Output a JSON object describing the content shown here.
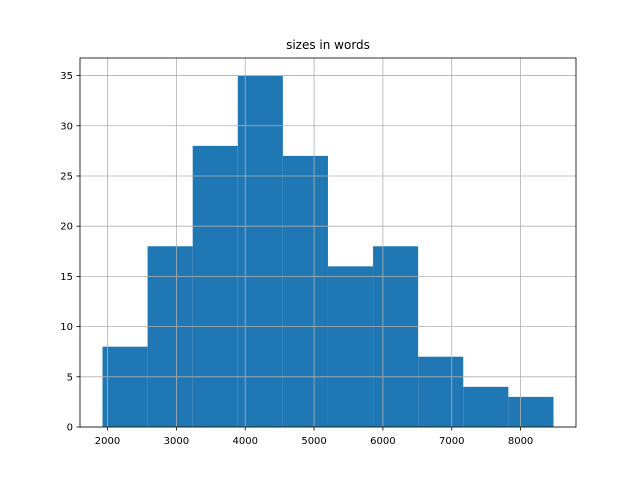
{
  "chart_data": {
    "type": "histogram",
    "title": "sizes in words",
    "bins": [
      1927,
      2582,
      3237,
      3892,
      4547,
      5202,
      5857,
      6512,
      7167,
      7822,
      8478
    ],
    "values": [
      8,
      18,
      28,
      35,
      27,
      16,
      18,
      7,
      4,
      3
    ],
    "color": "#1f77b4",
    "xlim": [
      1600,
      8805
    ],
    "xticks": [
      2000,
      3000,
      4000,
      5000,
      6000,
      7000,
      8000
    ],
    "ylim": [
      0,
      36.75
    ],
    "yticks": [
      0,
      5,
      10,
      15,
      20,
      25,
      30,
      35
    ],
    "grid": true
  }
}
